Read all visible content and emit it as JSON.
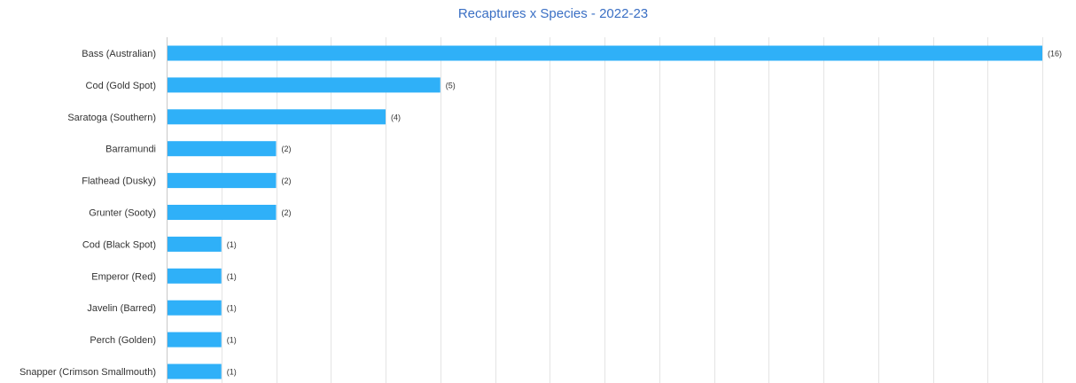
{
  "chart_data": {
    "type": "bar",
    "orientation": "horizontal",
    "title": "Recaptures x Species - 2022-23",
    "categories": [
      "Bass (Australian)",
      "Cod (Gold Spot)",
      "Saratoga (Southern)",
      "Barramundi",
      "Flathead (Dusky)",
      "Grunter (Sooty)",
      "Cod (Black Spot)",
      "Emperor (Red)",
      "Javelin (Barred)",
      "Perch (Golden)",
      "Snapper (Crimson Smallmouth)"
    ],
    "values": [
      16,
      5,
      4,
      2,
      2,
      2,
      1,
      1,
      1,
      1,
      1
    ],
    "value_labels": [
      "(16)",
      "(5)",
      "(4)",
      "(2)",
      "(2)",
      "(2)",
      "(1)",
      "(1)",
      "(1)",
      "(1)",
      "(1)"
    ],
    "xlim": [
      0,
      16
    ],
    "x_gridline_step": 1,
    "grid": true,
    "bar_color": "#2fb0f8",
    "title_color": "#3a6fc4",
    "gridline_color": "#e4e4e4"
  }
}
